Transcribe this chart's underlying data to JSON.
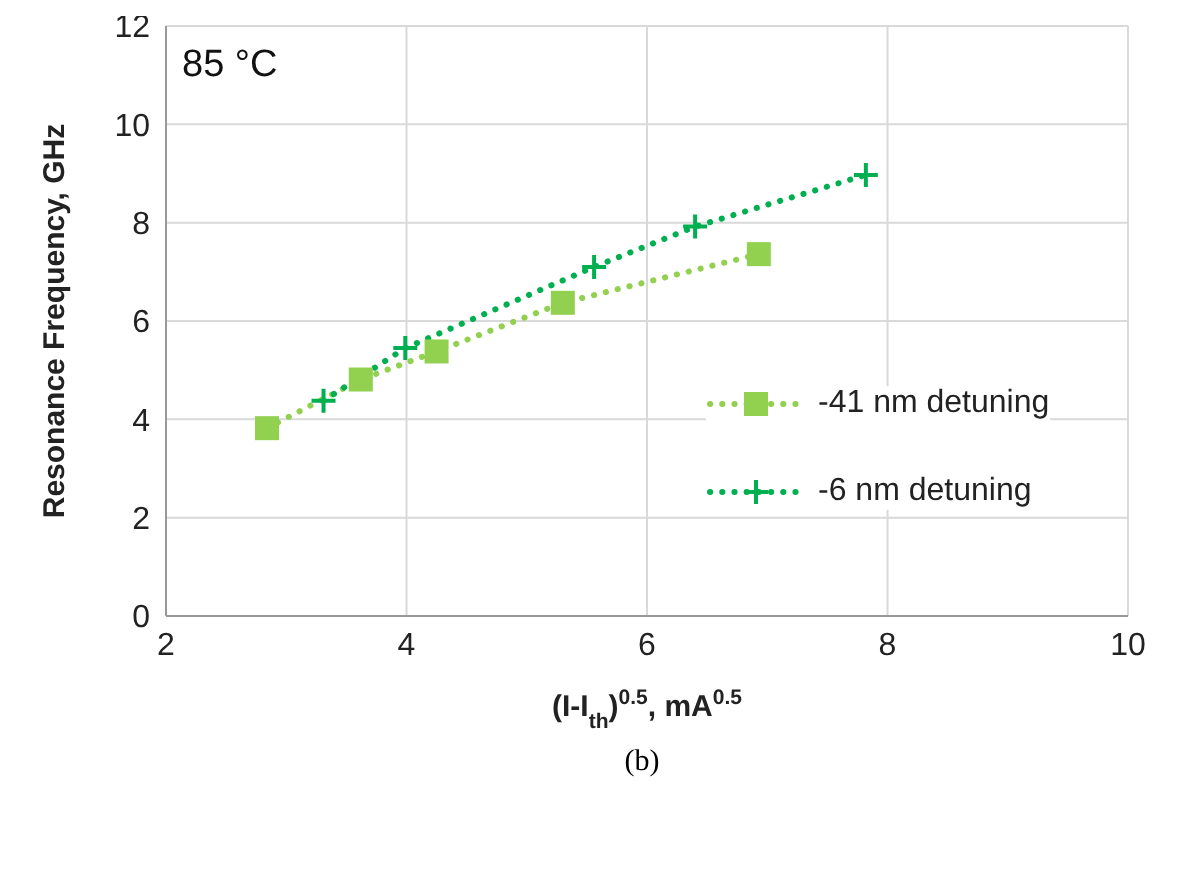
{
  "chart_data": {
    "type": "line",
    "xlabel": "(I-I$_{th}$)$^{0.5}$, mA$^{0.5}$",
    "ylabel": "Resonance Frequency, GHz",
    "xlim": [
      2,
      10
    ],
    "xticks": [
      2,
      4,
      6,
      8,
      10
    ],
    "ylim": [
      0,
      12
    ],
    "yticks": [
      0,
      2,
      4,
      6,
      8,
      10,
      12
    ],
    "grid": true,
    "legend": "right",
    "line_style": "dotted",
    "annotations": [
      "85 °C",
      "(b)"
    ],
    "series": [
      {
        "name": "-41 nm detuning",
        "color": "#92d050",
        "marker": "square",
        "x": [
          2.84,
          3.62,
          4.25,
          5.3,
          6.93
        ],
        "values": [
          3.82,
          4.81,
          5.38,
          6.37,
          7.36
        ]
      },
      {
        "name": "-6 nm detuning",
        "color": "#00b050",
        "marker": "cross",
        "x": [
          3.31,
          3.99,
          5.56,
          6.4,
          7.82
        ],
        "values": [
          4.38,
          5.45,
          7.1,
          7.92,
          8.97
        ]
      }
    ]
  }
}
